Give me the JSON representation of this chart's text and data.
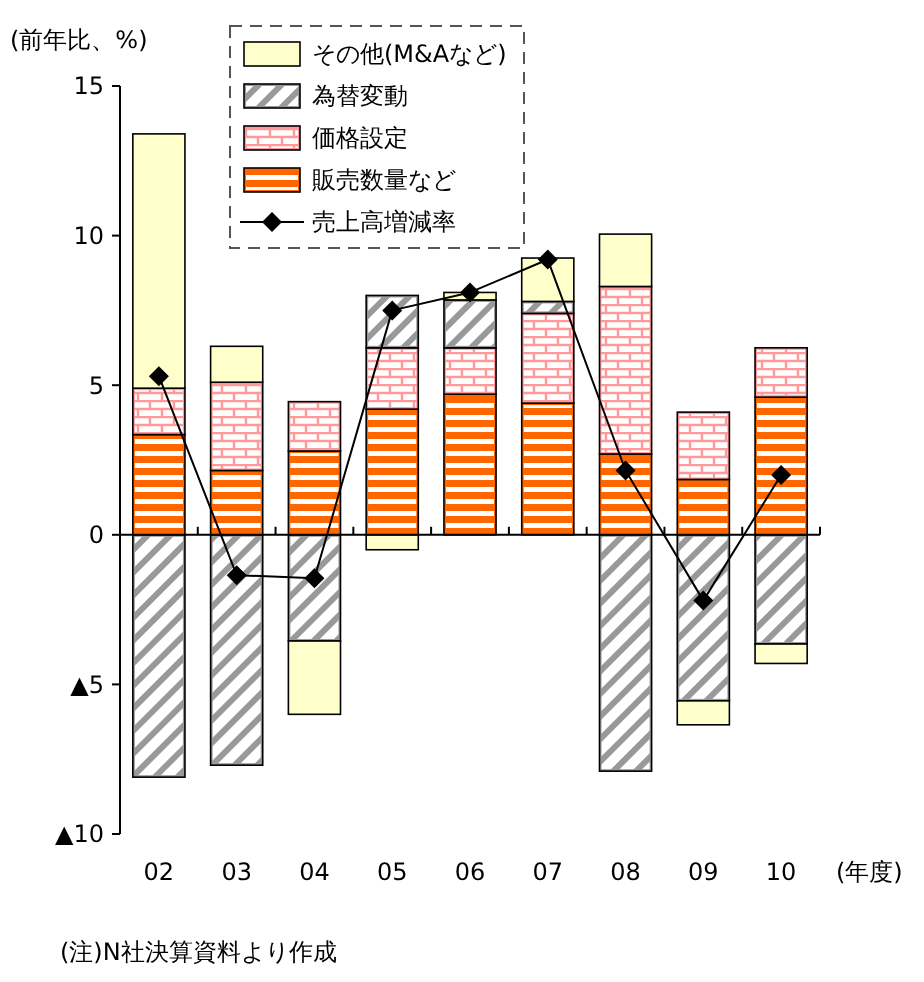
{
  "chart_data": {
    "type": "bar",
    "stacked": true,
    "ylabel": "(前年比、%)",
    "xlabel": "(年度)",
    "categories": [
      "02",
      "03",
      "04",
      "05",
      "06",
      "07",
      "08",
      "09",
      "10"
    ],
    "ylim": [
      -10,
      15
    ],
    "yticks": [
      {
        "value": -10,
        "label": "▲10"
      },
      {
        "value": -5,
        "label": "▲5"
      },
      0,
      5,
      10,
      15
    ],
    "legend": "top",
    "marker": "diamond",
    "series": [
      {
        "name": "販売数量など",
        "color": "#ff6600",
        "values": [
          3.35,
          2.15,
          2.8,
          4.2,
          4.7,
          4.4,
          2.7,
          1.85,
          4.6
        ]
      },
      {
        "name": "価格設定",
        "color": "#ff9999",
        "values": [
          1.55,
          2.95,
          1.65,
          2.05,
          1.55,
          3.0,
          5.6,
          2.25,
          1.65
        ]
      },
      {
        "name": "為替変動",
        "color": "#999999",
        "values": [
          -8.1,
          -7.7,
          -3.55,
          1.75,
          1.6,
          0.4,
          -7.9,
          -5.55,
          -3.65
        ]
      },
      {
        "name": "その他(M&Aなど)",
        "color": "#ffffcc",
        "values": [
          8.5,
          1.2,
          -2.45,
          -0.5,
          0.25,
          1.45,
          1.75,
          -0.8,
          -0.65
        ]
      },
      {
        "name": "売上高増減率",
        "type": "line",
        "color": "#000000",
        "values": [
          5.3,
          -1.35,
          -1.45,
          7.5,
          8.1,
          9.2,
          2.15,
          -2.2,
          2.0
        ]
      }
    ],
    "annotations": [
      "(注)N社決算資料より作成"
    ]
  }
}
